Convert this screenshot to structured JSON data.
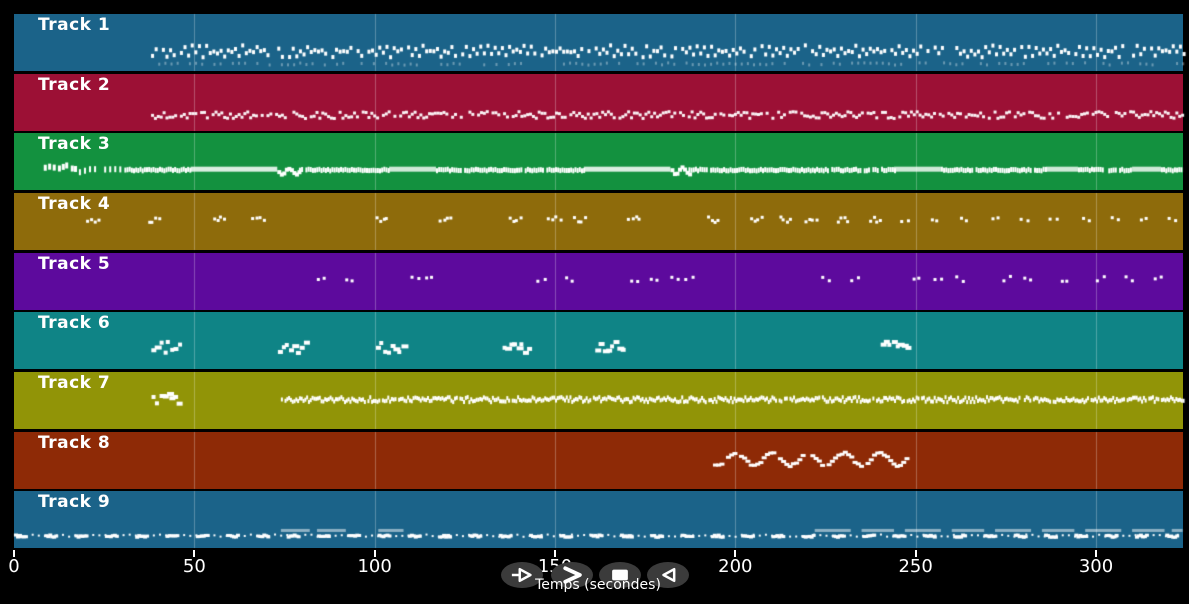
{
  "app": {
    "background": "#000000",
    "note_color": "#ffffff"
  },
  "axis": {
    "label": "Temps (secondes)",
    "ticks": [
      "0",
      "50",
      "100",
      "150",
      "200",
      "250",
      "300"
    ],
    "tick_values": [
      0,
      50,
      100,
      150,
      200,
      250,
      300
    ],
    "gridline_alpha": 0.28,
    "text_color": "#ffffff"
  },
  "transport": {
    "button_bg": "#3b3b3b",
    "glyph_color": "#ffffff",
    "buttons": [
      {
        "name": "play",
        "icon": "play-icon"
      },
      {
        "name": "fast-forward",
        "icon": "fast-forward-icon"
      },
      {
        "name": "stop",
        "icon": "stop-icon"
      },
      {
        "name": "rewind",
        "icon": "rewind-icon"
      }
    ]
  },
  "tracks": [
    {
      "label": "Track 1",
      "color": "#1B6389",
      "segments": [
        {
          "type": "run",
          "t0": 38,
          "t1": 324,
          "step": 1.0,
          "pitch": 0.62,
          "jitter": 0.055,
          "alt": 0.05,
          "w": 3,
          "h": 4,
          "alpha": 1,
          "gap": 0.1
        },
        {
          "type": "run",
          "t0": 40,
          "t1": 324,
          "step": 1.7,
          "pitch": 0.85,
          "jitter": 0.02,
          "w": 2,
          "h": 3,
          "alpha": 0.35,
          "gap": 0.35
        }
      ]
    },
    {
      "label": "Track 2",
      "color": "#9C1035",
      "segments": [
        {
          "type": "run",
          "t0": 38,
          "t1": 324,
          "step": 0.8,
          "pitch": 0.7,
          "jitter": 0.06,
          "w": 3,
          "h": 3,
          "alpha": 0.95,
          "gap": 0.12
        }
      ]
    },
    {
      "label": "Track 3",
      "color": "#13913F",
      "segments": [
        {
          "type": "clusters",
          "times": [
            8,
            10.5,
            13,
            15.5
          ],
          "n": 2,
          "spread": 1.4,
          "pitch": 0.55,
          "jitter": 0.04,
          "w": 3,
          "h": 6,
          "alpha": 1
        },
        {
          "type": "run",
          "t0": 18,
          "t1": 30,
          "step": 1.4,
          "pitch": 0.6,
          "jitter": 0.03,
          "w": 2,
          "h": 6,
          "alpha": 1,
          "gap": 0.08
        },
        {
          "type": "run",
          "t0": 30,
          "t1": 49,
          "step": 0.6,
          "pitch": 0.6,
          "jitter": 0.015,
          "w": 2,
          "h": 5,
          "alpha": 1,
          "gap": 0.05
        },
        {
          "type": "bar",
          "t0": 49,
          "t1": 73,
          "pitch": 0.585,
          "h": 5,
          "alpha": 0.85
        },
        {
          "type": "melody",
          "t0": 73,
          "t1": 79,
          "step": 0.7,
          "pitch": 0.63,
          "amp": 0.05,
          "period": 4,
          "w": 4,
          "h": 4,
          "alpha": 1,
          "gap": 0
        },
        {
          "type": "run",
          "t0": 79,
          "t1": 104,
          "step": 0.6,
          "pitch": 0.6,
          "jitter": 0.015,
          "w": 2,
          "h": 5,
          "alpha": 1,
          "gap": 0.05
        },
        {
          "type": "bar",
          "t0": 104,
          "t1": 117,
          "pitch": 0.585,
          "h": 5,
          "alpha": 0.8
        },
        {
          "type": "run",
          "t0": 117,
          "t1": 158,
          "step": 0.6,
          "pitch": 0.6,
          "jitter": 0.015,
          "w": 2,
          "h": 5,
          "alpha": 1,
          "gap": 0.05
        },
        {
          "type": "bar",
          "t0": 158,
          "t1": 182,
          "pitch": 0.585,
          "h": 5,
          "alpha": 0.85
        },
        {
          "type": "melody",
          "t0": 182,
          "t1": 187,
          "step": 0.7,
          "pitch": 0.63,
          "amp": 0.05,
          "period": 4,
          "w": 4,
          "h": 4,
          "alpha": 1,
          "gap": 0
        },
        {
          "type": "run",
          "t0": 187,
          "t1": 244,
          "step": 0.6,
          "pitch": 0.6,
          "jitter": 0.015,
          "w": 2,
          "h": 5,
          "alpha": 1,
          "gap": 0.05
        },
        {
          "type": "bar",
          "t0": 244,
          "t1": 257,
          "pitch": 0.585,
          "h": 5,
          "alpha": 0.8
        },
        {
          "type": "run",
          "t0": 257,
          "t1": 286,
          "step": 0.6,
          "pitch": 0.6,
          "jitter": 0.015,
          "w": 2,
          "h": 5,
          "alpha": 1,
          "gap": 0.05
        },
        {
          "type": "bar",
          "t0": 286,
          "t1": 295,
          "pitch": 0.585,
          "h": 5,
          "alpha": 0.8
        },
        {
          "type": "run",
          "t0": 295,
          "t1": 310,
          "step": 0.6,
          "pitch": 0.6,
          "jitter": 0.015,
          "w": 2,
          "h": 5,
          "alpha": 1,
          "gap": 0.05
        },
        {
          "type": "bar",
          "t0": 310,
          "t1": 318,
          "pitch": 0.585,
          "h": 5,
          "alpha": 0.8
        },
        {
          "type": "run",
          "t0": 318,
          "t1": 324,
          "step": 0.6,
          "pitch": 0.6,
          "jitter": 0.015,
          "w": 2,
          "h": 5,
          "alpha": 1,
          "gap": 0.05
        }
      ]
    },
    {
      "label": "Track 4",
      "color": "#8E6B0B",
      "segments": [
        {
          "type": "clusters",
          "times": [
            20,
            37,
            55,
            66,
            100,
            118,
            137,
            148,
            155,
            170,
            192,
            204,
            212,
            219,
            228,
            237
          ],
          "n": 4,
          "spread": 3.0,
          "pitch": 0.44,
          "jitter": 0.05,
          "w": 3,
          "h": 3,
          "alpha": 1
        },
        {
          "type": "clusters",
          "times": [
            246,
            254,
            262,
            271,
            279,
            287,
            296,
            304,
            312,
            320
          ],
          "n": 2,
          "spread": 1.6,
          "pitch": 0.44,
          "jitter": 0.04,
          "w": 3,
          "h": 3,
          "alpha": 1
        }
      ]
    },
    {
      "label": "Track 5",
      "color": "#5D0A9D",
      "segments": [
        {
          "type": "clusters",
          "times": [
            84,
            92,
            110,
            114,
            145,
            153,
            171,
            176,
            182,
            186
          ],
          "n": 2,
          "spread": 1.6,
          "pitch": 0.44,
          "jitter": 0.04,
          "w": 3,
          "h": 3,
          "alpha": 1
        },
        {
          "type": "clusters",
          "times": [
            224,
            232,
            249,
            255,
            261,
            274,
            280,
            290,
            300,
            308,
            316
          ],
          "n": 2,
          "spread": 1.6,
          "pitch": 0.44,
          "jitter": 0.05,
          "w": 3,
          "h": 3,
          "alpha": 1
        }
      ]
    },
    {
      "label": "Track 6",
      "color": "#0F8486",
      "segments": [
        {
          "type": "chord",
          "times": [
            38,
            73,
            100,
            135,
            161,
            240
          ],
          "n": 8,
          "dur": 8,
          "pitch": 0.58,
          "jitter": 0.1,
          "w": 4,
          "h": 4,
          "alpha": 1
        }
      ]
    },
    {
      "label": "Track 7",
      "color": "#919407",
      "segments": [
        {
          "type": "chord",
          "times": [
            38
          ],
          "n": 8,
          "dur": 8,
          "pitch": 0.44,
          "jitter": 0.09,
          "w": 4,
          "h": 4,
          "alpha": 1
        },
        {
          "type": "run",
          "t0": 74,
          "t1": 324,
          "step": 0.5,
          "pitch": 0.45,
          "jitter": 0.045,
          "w": 2,
          "h": 4,
          "alpha": 1,
          "gap": 0.06
        }
      ]
    },
    {
      "label": "Track 8",
      "color": "#8E2A06",
      "segments": [
        {
          "type": "melody",
          "t0": 192,
          "t1": 247,
          "step": 0.9,
          "pitch": 0.46,
          "amp": 0.11,
          "period": 10,
          "w": 5,
          "h": 3,
          "alpha": 1,
          "gap": 0.18
        }
      ]
    },
    {
      "label": "Track 9",
      "color": "#1B6389",
      "segments": [
        {
          "type": "altrun",
          "t0": 0,
          "t1": 324,
          "pitch": 0.76,
          "jitter": 0.02,
          "alpha": 1,
          "dense_len": 3.2,
          "dense_step": 0.55,
          "dense_w": 4,
          "dense_h": 3,
          "sparse_len": 5.2,
          "sparse_step": 1.7,
          "sparse_w": 2,
          "sparse_h": 2
        },
        {
          "type": "bars",
          "list": [
            [
              74,
              82
            ],
            [
              84,
              92
            ],
            [
              101,
              108
            ],
            [
              222,
              232
            ],
            [
              235,
              244
            ],
            [
              247,
              257
            ],
            [
              260,
              269
            ],
            [
              272,
              282
            ],
            [
              285,
              294
            ],
            [
              297,
              307
            ],
            [
              310,
              319
            ],
            [
              321,
              324
            ]
          ],
          "pitch": 0.66,
          "h": 3,
          "alpha": 0.5
        }
      ]
    }
  ]
}
